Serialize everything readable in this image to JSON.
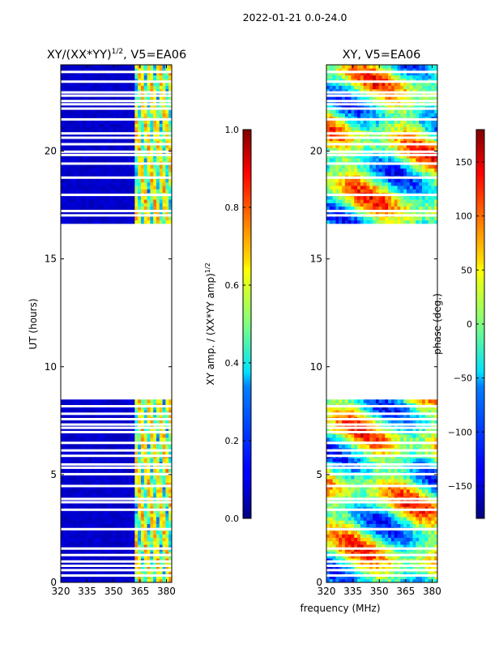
{
  "suptitle": "2022-01-21 0.0-24.0",
  "xlabel_shared": "frequency (MHz)",
  "chart_data": [
    {
      "type": "heatmap",
      "title_main": "XY/(XX*YY)",
      "title_sup": "1/2",
      "title_tail": ", V5=EA06",
      "ylabel": "UT (hours)",
      "xlim": [
        320,
        383
      ],
      "ylim": [
        0,
        24
      ],
      "xticks": [
        320,
        335,
        350,
        365,
        380
      ],
      "yticks": [
        0,
        5,
        10,
        15,
        20
      ],
      "data_gap_hours": [
        8.5,
        16.5
      ],
      "colorbar": {
        "label_main": "XY amp. / (XX*YY amp)",
        "label_sup": "1/2",
        "range": [
          0.0,
          1.0
        ],
        "ticks": [
          "0.0",
          "0.2",
          "0.4",
          "0.6",
          "0.8",
          "1.0"
        ],
        "colormap": "jet"
      }
    },
    {
      "type": "heatmap",
      "title": "XY, V5=EA06",
      "xlim": [
        320,
        383
      ],
      "ylim": [
        0,
        24
      ],
      "xticks": [
        320,
        335,
        350,
        365,
        380
      ],
      "yticks": [
        0,
        5,
        10,
        15,
        20
      ],
      "data_gap_hours": [
        8.5,
        16.5
      ],
      "colorbar": {
        "label": "phase (deg.)",
        "range": [
          -180,
          180
        ],
        "ticks": [
          "150",
          "100",
          "50",
          "0",
          "−50",
          "−100",
          "−150"
        ],
        "colormap": "jet"
      }
    }
  ]
}
